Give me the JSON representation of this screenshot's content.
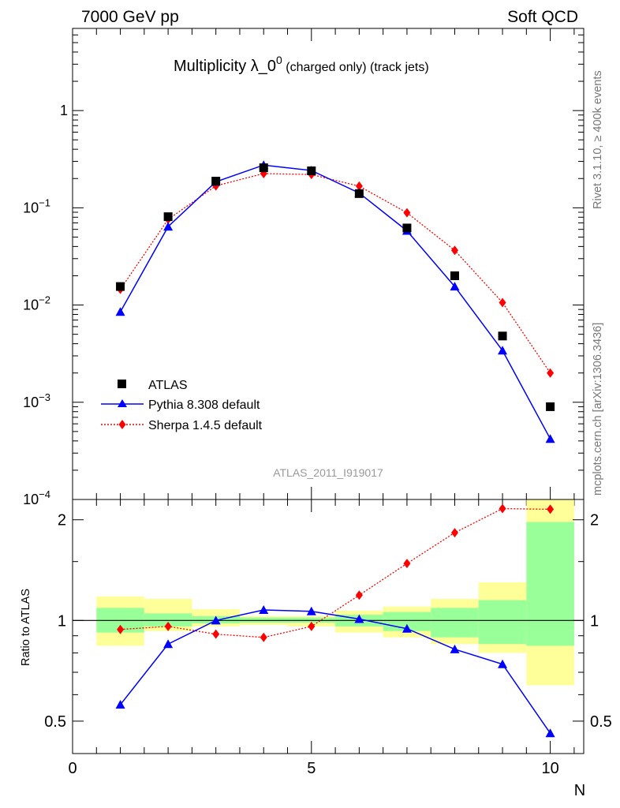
{
  "header": {
    "left": "7000 GeV pp",
    "right": "Soft QCD"
  },
  "title": {
    "main": "Multiplicity λ_0",
    "sup": "0",
    "small": " (charged only) (track jets)"
  },
  "side_labels": {
    "rivet": "Rivet 3.1.10, ≥ 400k events",
    "mcplots": "mcplots.cern.ch [arXiv:1306.3436]"
  },
  "watermark": "ATLAS_2011_I919017",
  "axis": {
    "xlabel": "N",
    "ratio_ylabel": "Ratio to ATLAS",
    "x_ticks": [
      "0",
      "5",
      "10"
    ],
    "y_ticks": [
      {
        "base": "10",
        "exp": "−4"
      },
      {
        "base": "10",
        "exp": "−3"
      },
      {
        "base": "10",
        "exp": "−2"
      },
      {
        "base": "10",
        "exp": "−1"
      },
      {
        "base": "1",
        "exp": ""
      }
    ],
    "ratio_ticks": [
      "0.5",
      "1",
      "2"
    ]
  },
  "legend": {
    "atlas": "ATLAS",
    "pythia": "Pythia 8.308 default",
    "sherpa": "Sherpa 1.4.5 default"
  },
  "colors": {
    "atlas": "#000000",
    "pythia": "#0000ff",
    "sherpa": "#ff0000",
    "band_inner": "#99ff99",
    "band_outer": "#ffff99"
  },
  "chart_data": {
    "type": "scatter",
    "title": "Multiplicity λ_0^0 (charged only) (track jets)",
    "xlabel": "N",
    "ylabel": "",
    "xlim": [
      0,
      10.7
    ],
    "ylim": [
      0.0001,
      7
    ],
    "yscale": "log",
    "ratio_ylim": [
      0.4,
      2.3
    ],
    "x": [
      1,
      2,
      3,
      4,
      5,
      6,
      7,
      8,
      9,
      10
    ],
    "series": [
      {
        "name": "ATLAS",
        "values": [
          0.0155,
          0.081,
          0.188,
          0.258,
          0.24,
          0.14,
          0.062,
          0.02,
          0.0048,
          0.0009
        ]
      },
      {
        "name": "Pythia 8.308 default",
        "values": [
          0.0085,
          0.064,
          0.185,
          0.275,
          0.242,
          0.142,
          0.058,
          0.0155,
          0.0034,
          0.00042
        ]
      },
      {
        "name": "Sherpa 1.4.5 default",
        "values": [
          0.0145,
          0.076,
          0.168,
          0.225,
          0.22,
          0.167,
          0.089,
          0.0365,
          0.0106,
          0.002
        ]
      }
    ],
    "ratio": [
      {
        "name": "Pythia 8.308 default",
        "values": [
          0.56,
          0.85,
          1.0,
          1.075,
          1.065,
          1.01,
          0.945,
          0.82,
          0.74,
          0.46
        ]
      },
      {
        "name": "Sherpa 1.4.5 default",
        "values": [
          0.94,
          0.96,
          0.91,
          0.89,
          0.96,
          1.19,
          1.48,
          1.83,
          2.16,
          2.15
        ]
      }
    ],
    "bands": {
      "x_edges": [
        [
          0.5,
          1.5
        ],
        [
          1.5,
          2.5
        ],
        [
          2.5,
          3.5
        ],
        [
          3.5,
          4.5
        ],
        [
          4.5,
          5.5
        ],
        [
          5.5,
          6.5
        ],
        [
          6.5,
          7.5
        ],
        [
          7.5,
          8.5
        ],
        [
          8.5,
          9.5
        ],
        [
          9.5,
          10.5
        ]
      ],
      "inner": [
        [
          0.92,
          1.09
        ],
        [
          0.96,
          1.05
        ],
        [
          0.98,
          1.03
        ],
        [
          0.985,
          1.02
        ],
        [
          0.985,
          1.02
        ],
        [
          0.96,
          1.04
        ],
        [
          0.93,
          1.06
        ],
        [
          0.89,
          1.09
        ],
        [
          0.85,
          1.15
        ],
        [
          0.84,
          1.97
        ]
      ],
      "outer": [
        [
          0.84,
          1.18
        ],
        [
          0.93,
          1.16
        ],
        [
          0.96,
          1.08
        ],
        [
          0.97,
          1.03
        ],
        [
          0.96,
          1.03
        ],
        [
          0.92,
          1.07
        ],
        [
          0.89,
          1.1
        ],
        [
          0.85,
          1.16
        ],
        [
          0.8,
          1.3
        ],
        [
          0.64,
          2.5
        ]
      ]
    }
  }
}
